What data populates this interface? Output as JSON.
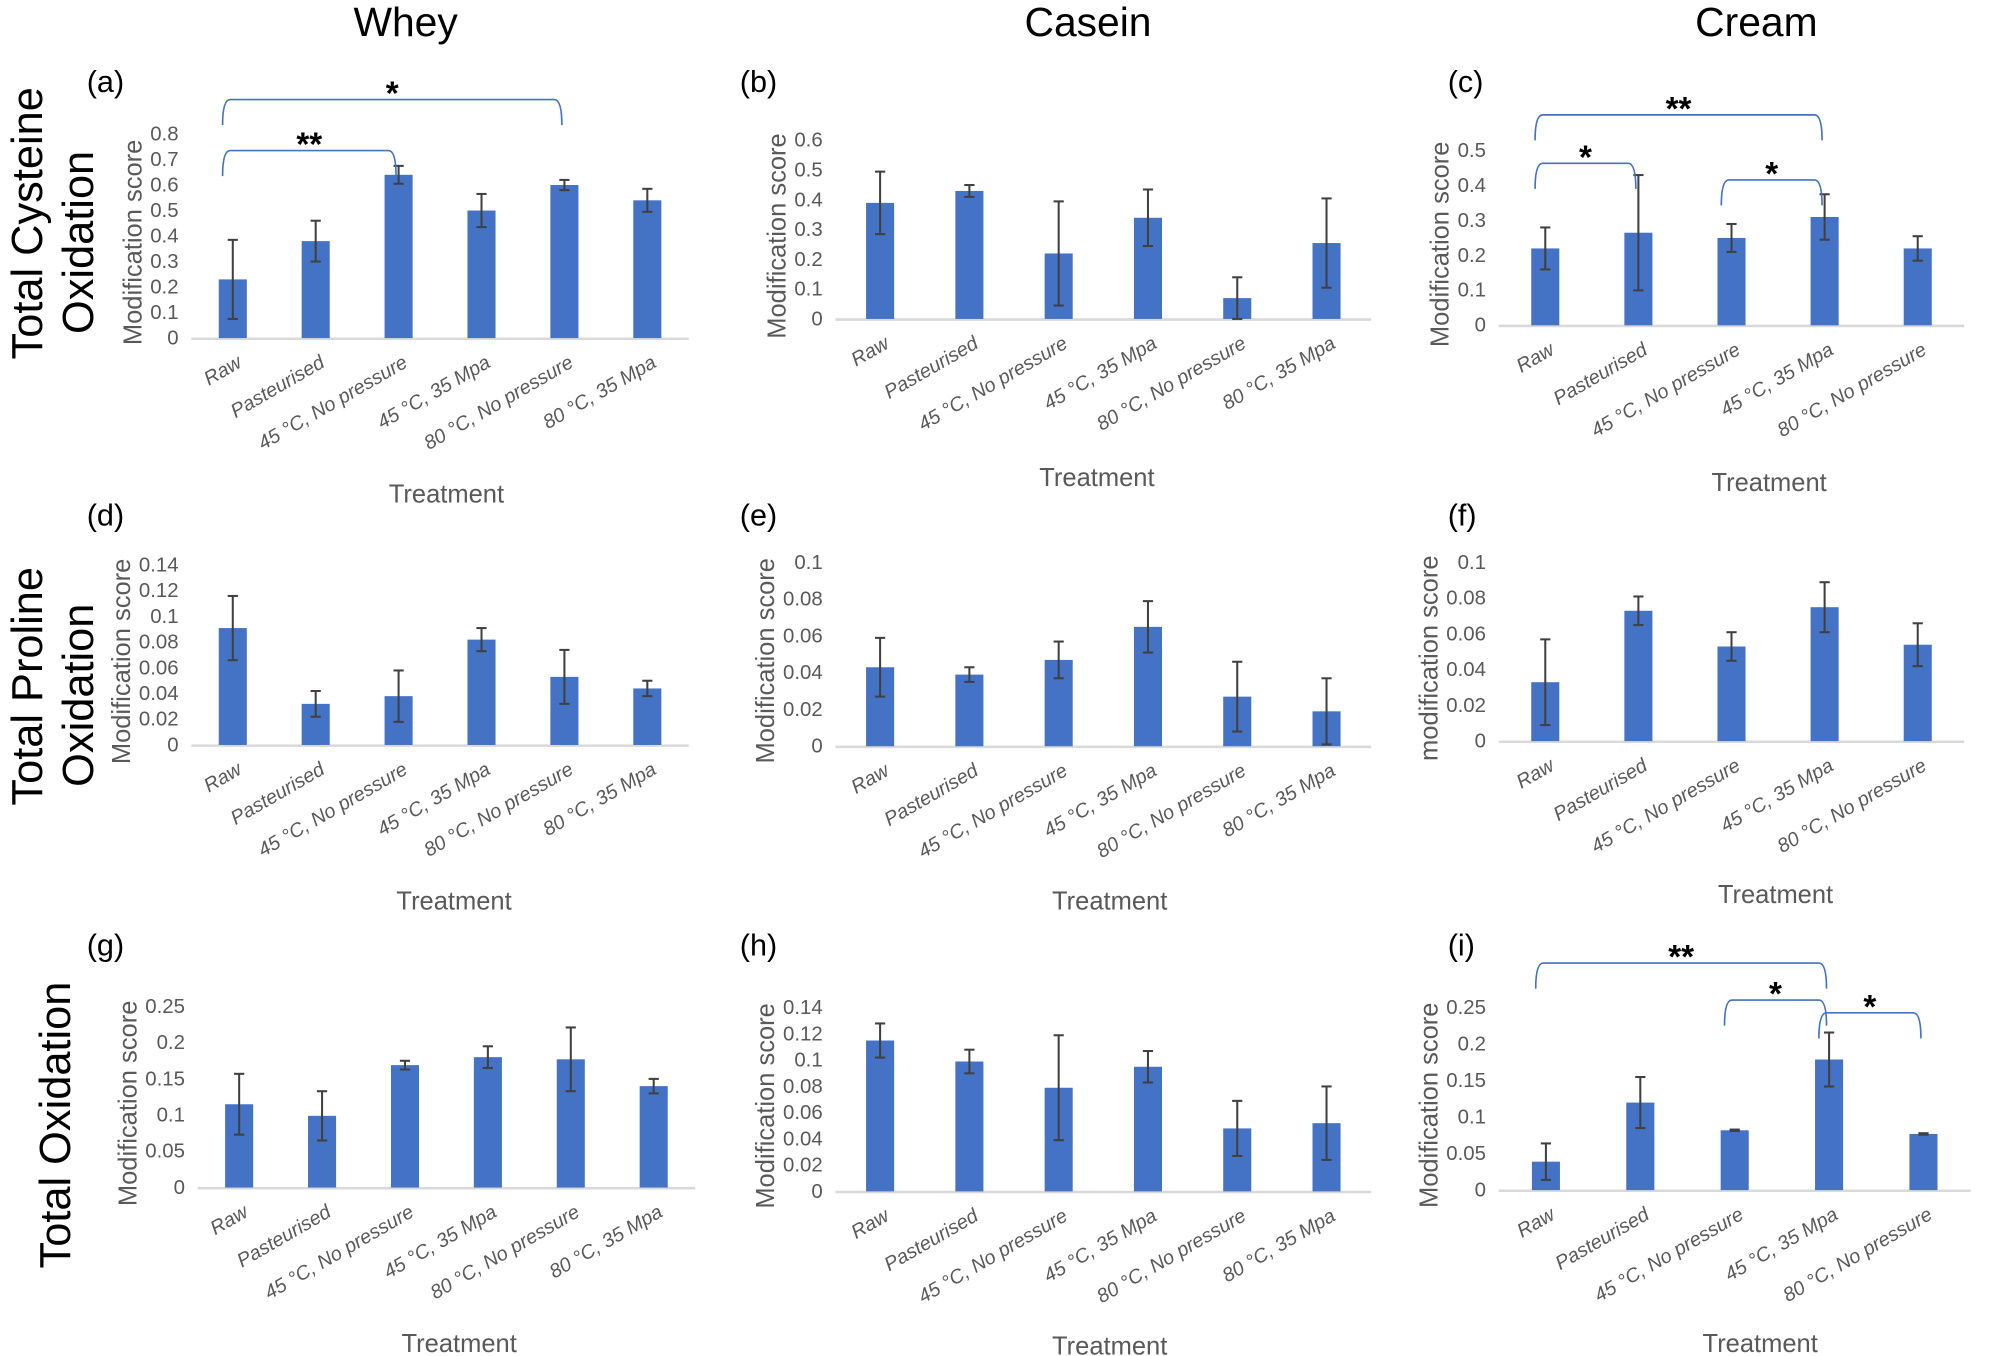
{
  "column_titles": [
    "Whey",
    "Casein",
    "Cream"
  ],
  "row_titles": [
    [
      "Total Cysteine",
      "Oxidation"
    ],
    [
      "Total Proline",
      "Oxidation"
    ],
    [
      "Total Oxidation"
    ]
  ],
  "colors": {
    "bar": "#4472C4",
    "error_bar": "#404040",
    "bracket": "#4472C4",
    "axis": "#D9D9D9"
  },
  "chart_data": [
    {
      "panel": "(a)",
      "type": "bar",
      "xlabel": "Treatment",
      "ylabel": "Modification score",
      "ylim": [
        0,
        0.8
      ],
      "yticks": [
        "0",
        "0.1",
        "0.2",
        "0.3",
        "0.4",
        "0.5",
        "0.6",
        "0.7",
        "0.8"
      ],
      "categories": [
        "Raw",
        "Pasteurised",
        "45 °C, No pressure",
        "45 °C, 35 Mpa",
        "80 °C, No pressure",
        "80 °C, 35 Mpa"
      ],
      "values": [
        0.23,
        0.38,
        0.64,
        0.5,
        0.6,
        0.54
      ],
      "errors": [
        0.155,
        0.08,
        0.035,
        0.065,
        0.02,
        0.045
      ],
      "significance": [
        {
          "from": 0,
          "to": 2,
          "label": "**"
        },
        {
          "from": 0,
          "to": 4,
          "label": "*"
        }
      ]
    },
    {
      "panel": "(b)",
      "type": "bar",
      "xlabel": "Treatment",
      "ylabel": "Modification score",
      "ylim": [
        0,
        0.6
      ],
      "yticks": [
        "0",
        "0.1",
        "0.2",
        "0.3",
        "0.4",
        "0.5",
        "0.6"
      ],
      "categories": [
        "Raw",
        "Pasteurised",
        "45 °C, No pressure",
        "45 °C, 35 Mpa",
        "80 °C, No pressure",
        "80 °C, 35 Mpa"
      ],
      "values": [
        0.39,
        0.43,
        0.22,
        0.34,
        0.07,
        0.255
      ],
      "errors": [
        0.105,
        0.02,
        0.175,
        0.095,
        0.07,
        0.15
      ],
      "significance": []
    },
    {
      "panel": "(c)",
      "type": "bar",
      "xlabel": "Treatment",
      "ylabel": "Modification score",
      "ylim": [
        0,
        0.5
      ],
      "yticks": [
        "0",
        "0.1",
        "0.2",
        "0.3",
        "0.4",
        "0.5"
      ],
      "categories": [
        "Raw",
        "Pasteurised",
        "45 °C, No pressure",
        "45 °C, 35 Mpa",
        "80 °C, No pressure"
      ],
      "values": [
        0.22,
        0.265,
        0.25,
        0.31,
        0.22
      ],
      "errors": [
        0.06,
        0.165,
        0.04,
        0.065,
        0.035
      ],
      "significance": [
        {
          "from": 0,
          "to": 1,
          "label": "*"
        },
        {
          "from": 2,
          "to": 3,
          "label": "*"
        },
        {
          "from": 0,
          "to": 3,
          "label": "**"
        }
      ]
    },
    {
      "panel": "(d)",
      "type": "bar",
      "xlabel": "Treatment",
      "ylabel": "Modification score",
      "ylim": [
        0,
        0.14
      ],
      "yticks": [
        "0",
        "0.02",
        "0.04",
        "0.06",
        "0.08",
        "0.1",
        "0.12",
        "0.14"
      ],
      "categories": [
        "Raw",
        "Pasteurised",
        "45 °C, No pressure",
        "45 °C, 35 Mpa",
        "80 °C, No pressure",
        "80 °C, 35 Mpa"
      ],
      "values": [
        0.091,
        0.032,
        0.038,
        0.082,
        0.053,
        0.044
      ],
      "errors": [
        0.025,
        0.01,
        0.02,
        0.009,
        0.021,
        0.006
      ],
      "significance": []
    },
    {
      "panel": "(e)",
      "type": "bar",
      "xlabel": "Treatment",
      "ylabel": "Modification score",
      "ylim": [
        0,
        0.1
      ],
      "yticks": [
        "0",
        "0.02",
        "0.04",
        "0.06",
        "0.08",
        "0.1"
      ],
      "categories": [
        "Raw",
        "Pasteurised",
        "45 °C, No pressure",
        "45 °C, 35 Mpa",
        "80 °C, No pressure",
        "80 °C, 35 Mpa"
      ],
      "values": [
        0.043,
        0.039,
        0.047,
        0.065,
        0.027,
        0.019
      ],
      "errors": [
        0.016,
        0.004,
        0.01,
        0.014,
        0.019,
        0.018
      ],
      "significance": []
    },
    {
      "panel": "(f)",
      "type": "bar",
      "xlabel": "Treatment",
      "ylabel": "modification score",
      "ylim": [
        0,
        0.1
      ],
      "yticks": [
        "0",
        "0.02",
        "0.04",
        "0.06",
        "0.08",
        "0.1"
      ],
      "categories": [
        "Raw",
        "Pasteurised",
        "45 °C, No pressure",
        "45 °C, 35 Mpa",
        "80 °C, No pressure"
      ],
      "values": [
        0.033,
        0.073,
        0.053,
        0.075,
        0.054
      ],
      "errors": [
        0.024,
        0.008,
        0.008,
        0.014,
        0.012
      ],
      "significance": []
    },
    {
      "panel": "(g)",
      "type": "bar",
      "xlabel": "Treatment",
      "ylabel": "Modification score",
      "ylim": [
        0,
        0.25
      ],
      "yticks": [
        "0",
        "0.05",
        "0.1",
        "0.15",
        "0.2",
        "0.25"
      ],
      "categories": [
        "Raw",
        "Pasteurised",
        "45 °C, No pressure",
        "45 °C, 35 Mpa",
        "80 °C, No pressure",
        "80 °C, 35 Mpa"
      ],
      "values": [
        0.115,
        0.099,
        0.169,
        0.18,
        0.177,
        0.14
      ],
      "errors": [
        0.042,
        0.034,
        0.006,
        0.015,
        0.044,
        0.01
      ],
      "significance": []
    },
    {
      "panel": "(h)",
      "type": "bar",
      "xlabel": "Treatment",
      "ylabel": "Modification score",
      "ylim": [
        0,
        0.14
      ],
      "yticks": [
        "0",
        "0.02",
        "0.04",
        "0.06",
        "0.08",
        "0.1",
        "0.12",
        "0.14"
      ],
      "categories": [
        "Raw",
        "Pasteurised",
        "45 °C, No pressure",
        "45 °C, 35 Mpa",
        "80 °C, No pressure",
        "80 °C, 35 Mpa"
      ],
      "values": [
        0.115,
        0.099,
        0.079,
        0.095,
        0.048,
        0.052
      ],
      "errors": [
        0.013,
        0.009,
        0.04,
        0.012,
        0.021,
        0.028
      ],
      "significance": []
    },
    {
      "panel": "(i)",
      "type": "bar",
      "xlabel": "Treatment",
      "ylabel": "Modification score",
      "ylim": [
        0,
        0.25
      ],
      "yticks": [
        "0",
        "0.05",
        "0.1",
        "0.15",
        "0.2",
        "0.25"
      ],
      "categories": [
        "Raw",
        "Pasteurised",
        "45 °C, No pressure",
        "45 °C, 35 Mpa",
        "80 °C, No pressure"
      ],
      "values": [
        0.039,
        0.12,
        0.082,
        0.179,
        0.077
      ],
      "errors": [
        0.025,
        0.035,
        0.001,
        0.037,
        0.001
      ],
      "significance": [
        {
          "from": 2,
          "to": 3,
          "label": "*"
        },
        {
          "from": 3,
          "to": 4,
          "label": "*"
        },
        {
          "from": 0,
          "to": 3,
          "label": "**"
        }
      ]
    }
  ]
}
